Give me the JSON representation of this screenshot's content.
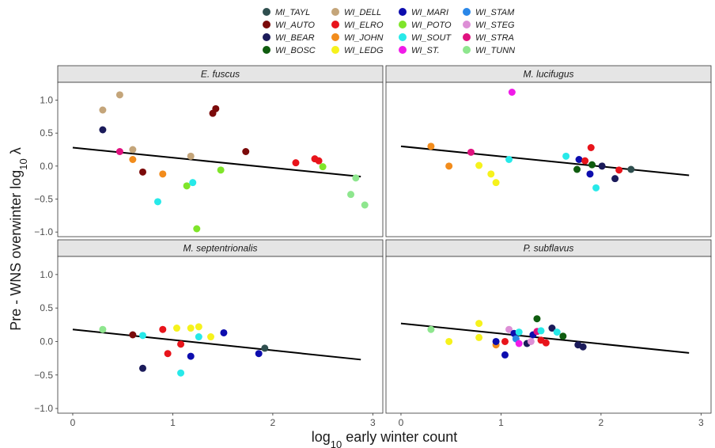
{
  "chart_data": {
    "type": "scatter",
    "xlabel_text": "log",
    "xlabel_sub": "10",
    "xlabel_rest": " early winter count",
    "ylabel_text": "Pre - WNS overwinter log",
    "ylabel_sub": "10",
    "ylabel_symbol": "λ",
    "x_ticks": [
      0,
      1,
      2,
      3
    ],
    "y_ticks": [
      1.0,
      0.5,
      0.0,
      -0.5,
      -1.0
    ],
    "y_tick_labels": [
      "1.0",
      "0.5",
      "0.0",
      "−0.5",
      "−1.0"
    ],
    "xlim": [
      -0.15,
      3.1
    ],
    "ylim": [
      -1.07,
      1.27
    ],
    "legend": [
      {
        "site": "MI_TAYL",
        "color": "#2F4F4F"
      },
      {
        "site": "WI_AUTO",
        "color": "#7B0A0A"
      },
      {
        "site": "WI_BEAR",
        "color": "#1B1B5A"
      },
      {
        "site": "WI_BOSC",
        "color": "#0F5C0F"
      },
      {
        "site": "WI_DELL",
        "color": "#C4A57A"
      },
      {
        "site": "WI_ELRO",
        "color": "#E8141B"
      },
      {
        "site": "WI_JOHN",
        "color": "#F28C1C"
      },
      {
        "site": "WI_LEDG",
        "color": "#F6F21C"
      },
      {
        "site": "WI_MARI",
        "color": "#0D0DAE"
      },
      {
        "site": "WI_POTO",
        "color": "#7FE52A"
      },
      {
        "site": "WI_SOUT",
        "color": "#27E9E9"
      },
      {
        "site": "WI_ST.",
        "color": "#F01BE8"
      },
      {
        "site": "WI_STAM",
        "color": "#2A87E8"
      },
      {
        "site": "WI_STEG",
        "color": "#DD8FD6"
      },
      {
        "site": "WI_STRA",
        "color": "#E0117F"
      },
      {
        "site": "WI_TUNN",
        "color": "#8EE68E"
      }
    ],
    "panels": [
      {
        "title": "E. fuscus",
        "fit": {
          "x": [
            0,
            2.88
          ],
          "y": [
            0.28,
            -0.16
          ]
        },
        "points": [
          {
            "x": 0.3,
            "y": 0.85,
            "color": "#C4A57A"
          },
          {
            "x": 0.47,
            "y": 1.08,
            "color": "#C4A57A"
          },
          {
            "x": 0.3,
            "y": 0.55,
            "color": "#1B1B5A"
          },
          {
            "x": 0.47,
            "y": 0.22,
            "color": "#E0117F"
          },
          {
            "x": 0.6,
            "y": 0.25,
            "color": "#C4A57A"
          },
          {
            "x": 0.6,
            "y": 0.1,
            "color": "#F28C1C"
          },
          {
            "x": 0.7,
            "y": -0.09,
            "color": "#7B0A0A"
          },
          {
            "x": 0.9,
            "y": -0.12,
            "color": "#F28C1C"
          },
          {
            "x": 0.85,
            "y": -0.54,
            "color": "#27E9E9"
          },
          {
            "x": 1.14,
            "y": -0.3,
            "color": "#7FE52A"
          },
          {
            "x": 1.2,
            "y": -0.25,
            "color": "#27E9E9"
          },
          {
            "x": 1.18,
            "y": 0.15,
            "color": "#C4A57A"
          },
          {
            "x": 1.24,
            "y": -0.95,
            "color": "#7FE52A"
          },
          {
            "x": 1.4,
            "y": 0.8,
            "color": "#7B0A0A"
          },
          {
            "x": 1.43,
            "y": 0.87,
            "color": "#7B0A0A"
          },
          {
            "x": 1.48,
            "y": -0.06,
            "color": "#7FE52A"
          },
          {
            "x": 1.73,
            "y": 0.22,
            "color": "#7B0A0A"
          },
          {
            "x": 2.23,
            "y": 0.05,
            "color": "#E8141B"
          },
          {
            "x": 2.42,
            "y": 0.11,
            "color": "#E8141B"
          },
          {
            "x": 2.46,
            "y": 0.08,
            "color": "#E8141B"
          },
          {
            "x": 2.5,
            "y": -0.01,
            "color": "#7FE52A"
          },
          {
            "x": 2.78,
            "y": -0.43,
            "color": "#8EE68E"
          },
          {
            "x": 2.83,
            "y": -0.18,
            "color": "#8EE68E"
          },
          {
            "x": 2.92,
            "y": -0.59,
            "color": "#8EE68E"
          }
        ]
      },
      {
        "title": "M. lucifugus",
        "fit": {
          "x": [
            0,
            2.88
          ],
          "y": [
            0.3,
            -0.14
          ]
        },
        "points": [
          {
            "x": 0.3,
            "y": 0.3,
            "color": "#F28C1C"
          },
          {
            "x": 0.48,
            "y": 0.0,
            "color": "#F28C1C"
          },
          {
            "x": 0.7,
            "y": 0.21,
            "color": "#E0117F"
          },
          {
            "x": 0.78,
            "y": 0.01,
            "color": "#F6F21C"
          },
          {
            "x": 0.9,
            "y": -0.12,
            "color": "#F6F21C"
          },
          {
            "x": 0.95,
            "y": -0.25,
            "color": "#F6F21C"
          },
          {
            "x": 1.08,
            "y": 0.1,
            "color": "#27E9E9"
          },
          {
            "x": 1.11,
            "y": 1.12,
            "color": "#F01BE8"
          },
          {
            "x": 1.65,
            "y": 0.15,
            "color": "#27E9E9"
          },
          {
            "x": 1.76,
            "y": -0.05,
            "color": "#0F5C0F"
          },
          {
            "x": 1.78,
            "y": 0.1,
            "color": "#0D0DAE"
          },
          {
            "x": 1.84,
            "y": 0.08,
            "color": "#E8141B"
          },
          {
            "x": 1.89,
            "y": -0.12,
            "color": "#0D0DAE"
          },
          {
            "x": 1.9,
            "y": 0.28,
            "color": "#E8141B"
          },
          {
            "x": 1.91,
            "y": 0.02,
            "color": "#0F5C0F"
          },
          {
            "x": 1.95,
            "y": -0.33,
            "color": "#27E9E9"
          },
          {
            "x": 2.01,
            "y": 0.0,
            "color": "#1B1B5A"
          },
          {
            "x": 2.14,
            "y": -0.19,
            "color": "#1B1B5A"
          },
          {
            "x": 2.18,
            "y": -0.06,
            "color": "#E8141B"
          },
          {
            "x": 2.3,
            "y": -0.05,
            "color": "#2F4F4F"
          }
        ]
      },
      {
        "title": "M. septentrionalis",
        "fit": {
          "x": [
            0,
            2.88
          ],
          "y": [
            0.18,
            -0.27
          ]
        },
        "points": [
          {
            "x": 0.3,
            "y": 0.18,
            "color": "#8EE68E"
          },
          {
            "x": 0.6,
            "y": 0.1,
            "color": "#7B0A0A"
          },
          {
            "x": 0.7,
            "y": 0.09,
            "color": "#27E9E9"
          },
          {
            "x": 0.7,
            "y": -0.4,
            "color": "#1B1B5A"
          },
          {
            "x": 0.9,
            "y": 0.18,
            "color": "#E8141B"
          },
          {
            "x": 0.95,
            "y": -0.18,
            "color": "#E8141B"
          },
          {
            "x": 1.04,
            "y": 0.2,
            "color": "#F6F21C"
          },
          {
            "x": 1.08,
            "y": -0.04,
            "color": "#E8141B"
          },
          {
            "x": 1.08,
            "y": -0.47,
            "color": "#27E9E9"
          },
          {
            "x": 1.18,
            "y": 0.2,
            "color": "#F6F21C"
          },
          {
            "x": 1.18,
            "y": -0.22,
            "color": "#0D0DAE"
          },
          {
            "x": 1.26,
            "y": 0.22,
            "color": "#F6F21C"
          },
          {
            "x": 1.26,
            "y": 0.07,
            "color": "#27E9E9"
          },
          {
            "x": 1.38,
            "y": 0.07,
            "color": "#F6F21C"
          },
          {
            "x": 1.51,
            "y": 0.13,
            "color": "#0D0DAE"
          },
          {
            "x": 1.86,
            "y": -0.18,
            "color": "#0D0DAE"
          },
          {
            "x": 1.92,
            "y": -0.1,
            "color": "#2F4F4F"
          }
        ]
      },
      {
        "title": "P. subflavus",
        "fit": {
          "x": [
            0,
            2.88
          ],
          "y": [
            0.27,
            -0.17
          ]
        },
        "points": [
          {
            "x": 0.3,
            "y": 0.18,
            "color": "#8EE68E"
          },
          {
            "x": 0.48,
            "y": 0.0,
            "color": "#F6F21C"
          },
          {
            "x": 0.78,
            "y": 0.27,
            "color": "#F6F21C"
          },
          {
            "x": 0.78,
            "y": 0.06,
            "color": "#F6F21C"
          },
          {
            "x": 0.95,
            "y": -0.05,
            "color": "#F28C1C"
          },
          {
            "x": 0.95,
            "y": 0.0,
            "color": "#0D0DAE"
          },
          {
            "x": 1.04,
            "y": -0.2,
            "color": "#0D0DAE"
          },
          {
            "x": 1.04,
            "y": 0.0,
            "color": "#E8141B"
          },
          {
            "x": 1.08,
            "y": 0.18,
            "color": "#DD8FD6"
          },
          {
            "x": 1.13,
            "y": 0.12,
            "color": "#0D0DAE"
          },
          {
            "x": 1.15,
            "y": 0.04,
            "color": "#2A87E8"
          },
          {
            "x": 1.18,
            "y": -0.03,
            "color": "#F01BE8"
          },
          {
            "x": 1.18,
            "y": 0.14,
            "color": "#27E9E9"
          },
          {
            "x": 1.26,
            "y": -0.03,
            "color": "#1B1B5A"
          },
          {
            "x": 1.3,
            "y": 0.0,
            "color": "#DD8FD6"
          },
          {
            "x": 1.32,
            "y": 0.1,
            "color": "#0D0DAE"
          },
          {
            "x": 1.36,
            "y": 0.15,
            "color": "#E0117F"
          },
          {
            "x": 1.36,
            "y": 0.34,
            "color": "#0F5C0F"
          },
          {
            "x": 1.4,
            "y": 0.02,
            "color": "#E8141B"
          },
          {
            "x": 1.4,
            "y": 0.16,
            "color": "#27E9E9"
          },
          {
            "x": 1.45,
            "y": -0.02,
            "color": "#E8141B"
          },
          {
            "x": 1.51,
            "y": 0.2,
            "color": "#1B1B5A"
          },
          {
            "x": 1.56,
            "y": 0.14,
            "color": "#27E9E9"
          },
          {
            "x": 1.62,
            "y": 0.08,
            "color": "#0F5C0F"
          },
          {
            "x": 1.77,
            "y": -0.05,
            "color": "#1B1B5A"
          },
          {
            "x": 1.82,
            "y": -0.08,
            "color": "#1B1B5A"
          }
        ]
      }
    ]
  }
}
